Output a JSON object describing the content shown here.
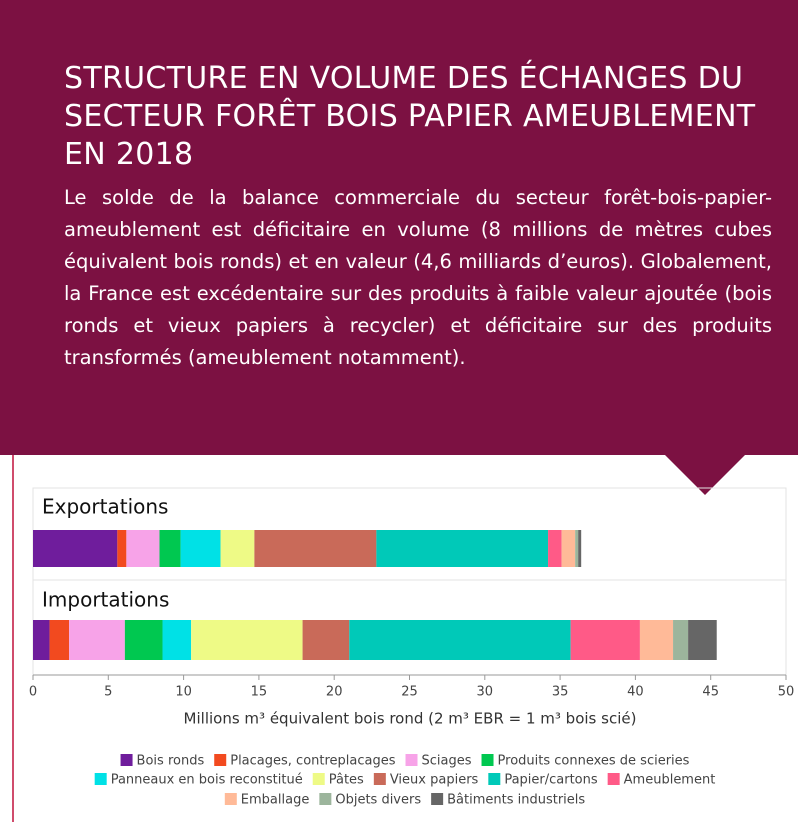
{
  "chart_data": {
    "type": "stacked-bar-horizontal",
    "title": "STRUCTURE EN VOLUME DES ÉCHANGES DU SECTEUR FORÊT BOIS PAPIER AMEUBLEMENT EN 2018",
    "subtitle": "Le solde de la balance commerciale du secteur forêt-bois-papier-ameublement est déficitaire en volume (8 millions de mètres cubes équivalent bois ronds) et en valeur (4,6 milliards d’euros). Globalement, la France est excédentaire sur des produits à faible valeur ajoutée (bois ronds et vieux papiers à recycler) et déficitaire sur des produits transformés (ameublement notamment).",
    "x_label": "Millions m³ équivalent bois rond (2 m³ EBR = 1 m³ bois scié)",
    "categories": [
      "Exportations",
      "Importations"
    ],
    "series": [
      {
        "name": "Bois ronds",
        "color": "#6f1d9c",
        "values": [
          5.6,
          1.1
        ]
      },
      {
        "name": "Placages, contreplacages",
        "color": "#f24a1f",
        "values": [
          0.6,
          1.3
        ]
      },
      {
        "name": "Sciages",
        "color": "#f7a3e8",
        "values": [
          2.2,
          3.7
        ]
      },
      {
        "name": "Produits connexes de scieries",
        "color": "#00c850",
        "values": [
          1.4,
          2.5
        ]
      },
      {
        "name": "Panneaux en bois reconstitué",
        "color": "#00e1e6",
        "values": [
          2.65,
          1.9
        ]
      },
      {
        "name": "Pâtes",
        "color": "#eefa86",
        "values": [
          2.25,
          7.4
        ]
      },
      {
        "name": "Vieux papiers",
        "color": "#c96a59",
        "values": [
          8.1,
          3.1
        ]
      },
      {
        "name": "Papier/cartons",
        "color": "#00c9b8",
        "values": [
          11.4,
          14.7
        ]
      },
      {
        "name": "Ameublement",
        "color": "#ff5a87",
        "values": [
          0.9,
          4.6
        ]
      },
      {
        "name": "Emballage",
        "color": "#ffba98",
        "values": [
          0.9,
          2.2
        ]
      },
      {
        "name": "Objets divers",
        "color": "#9cb59c",
        "values": [
          0.2,
          1.0
        ]
      },
      {
        "name": "Bâtiments industriels",
        "color": "#666666",
        "values": [
          0.2,
          1.9
        ]
      }
    ],
    "xlim": [
      0,
      50
    ],
    "xticks": [
      0,
      5,
      10,
      15,
      20,
      25,
      30,
      35,
      40,
      45,
      50
    ]
  }
}
